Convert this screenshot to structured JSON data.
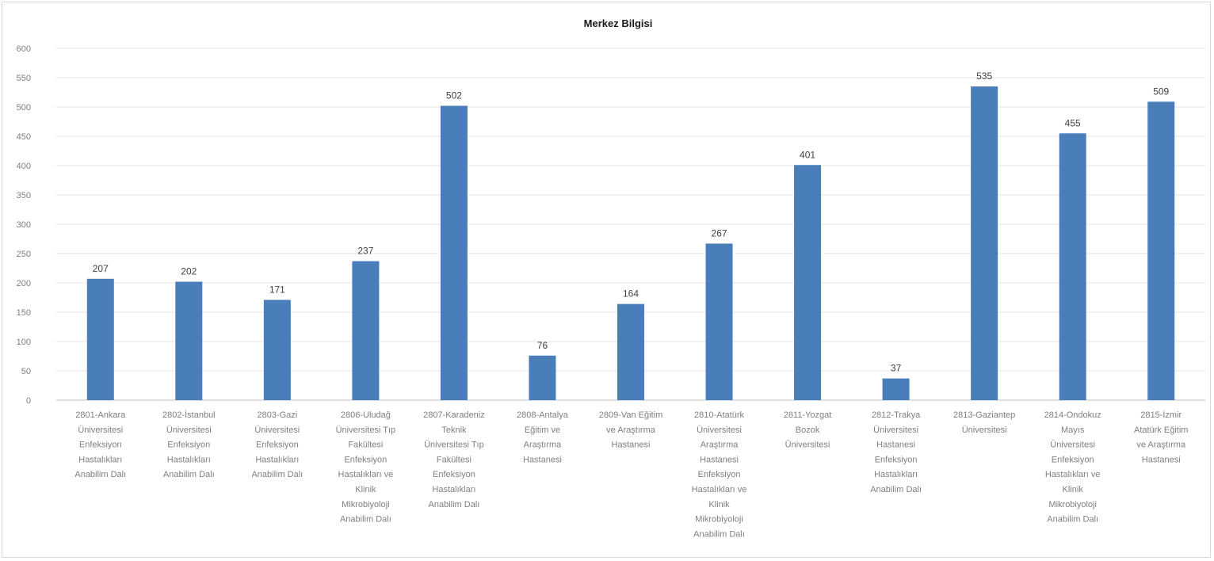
{
  "chart_data": {
    "type": "bar",
    "title": "Merkez Bilgisi",
    "xlabel": "",
    "ylabel": "",
    "ylim": [
      0,
      600
    ],
    "yticks": [
      0,
      50,
      100,
      150,
      200,
      250,
      300,
      350,
      400,
      450,
      500,
      550,
      600
    ],
    "grid": true,
    "legend": "none",
    "bar_color": "#4a7ebb",
    "categories": [
      [
        "2801-Ankara",
        "Üniversitesi",
        "Enfeksiyon",
        "Hastalıkları",
        "Anabilim Dalı"
      ],
      [
        "2802-İstanbul",
        "Üniversitesi",
        "Enfeksiyon",
        "Hastalıkları",
        "Anabilim Dalı"
      ],
      [
        "2803-Gazi",
        "Üniversitesi",
        "Enfeksiyon",
        "Hastalıkları",
        "Anabilim Dalı"
      ],
      [
        "2806-Uludağ",
        "Üniversitesi Tıp",
        "Fakültesi",
        "Enfeksiyon",
        "Hastalıkları ve",
        "Klinik",
        "Mikrobiyoloji",
        "Anabilim Dalı"
      ],
      [
        "2807-Karadeniz",
        "Teknik",
        "Üniversitesi Tıp",
        "Fakültesi",
        "Enfeksiyon",
        "Hastalıkları",
        "Anabilim Dalı"
      ],
      [
        "2808-Antalya",
        "Eğitim ve",
        "Araştırma",
        "Hastanesi"
      ],
      [
        "2809-Van Eğitim",
        "ve Araştırma",
        "Hastanesi"
      ],
      [
        "2810-Atatürk",
        "Üniversitesi",
        "Araştırma",
        "Hastanesi",
        "Enfeksiyon",
        "Hastalıkları ve",
        "Klinik",
        "Mikrobiyoloji",
        "Anabilim Dalı"
      ],
      [
        "2811-Yozgat",
        "Bozok",
        "Üniversitesi"
      ],
      [
        "2812-Trakya",
        "Üniversitesi",
        "Hastanesi",
        "Enfeksiyon",
        "Hastalıkları",
        "Anabilim Dalı"
      ],
      [
        "2813-Gaziantep",
        "Üniversitesi"
      ],
      [
        "2814-Ondokuz",
        "Mayıs",
        "Üniversitesi",
        "Enfeksiyon",
        "Hastalıkları ve",
        "Klinik",
        "Mikrobiyoloji",
        "Anabilim Dalı"
      ],
      [
        "2815-İzmir",
        "Atatürk Eğitim",
        "ve Araştırma",
        "Hastanesi"
      ]
    ],
    "values": [
      207,
      202,
      171,
      237,
      502,
      76,
      164,
      267,
      401,
      37,
      535,
      455,
      509
    ]
  }
}
